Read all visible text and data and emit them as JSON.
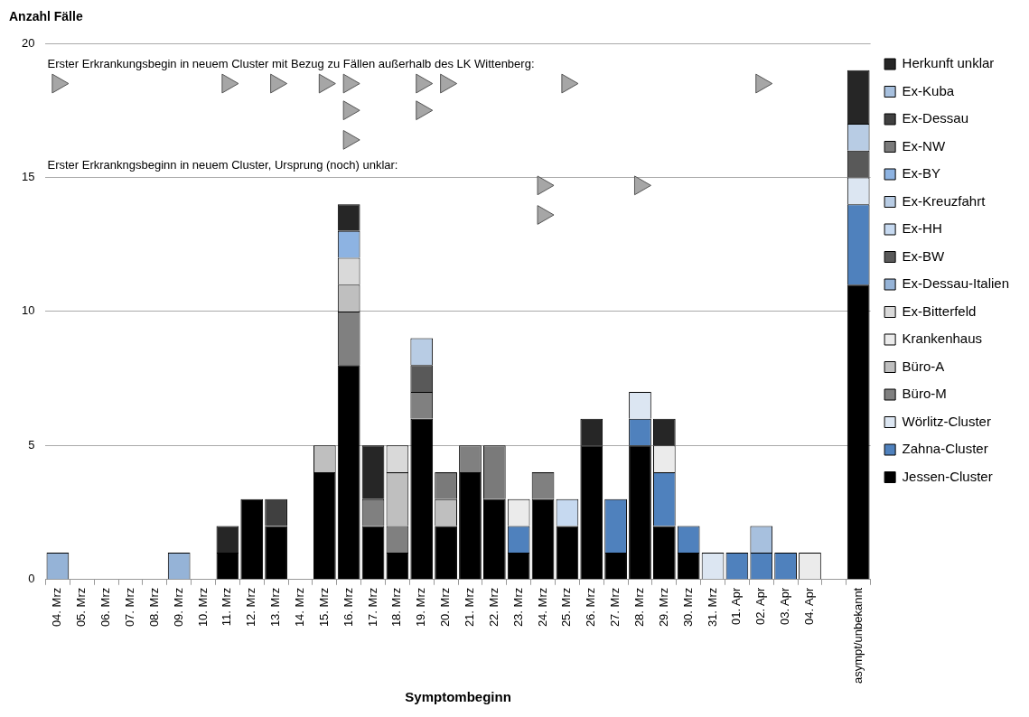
{
  "chart_data": {
    "type": "bar",
    "stacked": true,
    "ylabel": "Anzahl Fälle",
    "xlabel": "Symptombeginn",
    "categories": [
      "04. Mrz",
      "05. Mrz",
      "06. Mrz",
      "07. Mrz",
      "08. Mrz",
      "09. Mrz",
      "10. Mrz",
      "11. Mrz",
      "12. Mrz",
      "13. Mrz",
      "14. Mrz",
      "15. Mrz",
      "16. Mrz",
      "17. Mrz",
      "18. Mrz",
      "19. Mrz",
      "20. Mrz",
      "21. Mrz",
      "22. Mrz",
      "23. Mrz",
      "24. Mrz",
      "25. Mrz",
      "26. Mrz",
      "27. Mrz",
      "28. Mrz",
      "29. Mrz",
      "30. Mrz",
      "31. Mrz",
      "01. Apr",
      "02. Apr",
      "03. Apr",
      "04. Apr",
      null,
      "asympt/unbekannt"
    ],
    "ylim": [
      0,
      20
    ],
    "yticks": [
      0,
      5,
      10,
      15,
      20
    ],
    "grid": "y",
    "legend": "right",
    "annotations": [
      "Erster Erkrankungsbegin in neuem Cluster mit Bezug zu Fällen außerhalb des LK Wittenberg:",
      "Erster Erkrankngsbeginn in neuem Cluster, Ursprung (noch) unklar:"
    ],
    "series": [
      {
        "name": "Jessen-Cluster",
        "color": "#000000",
        "values": [
          null,
          null,
          null,
          null,
          null,
          null,
          null,
          1,
          3,
          2,
          null,
          4,
          8,
          2,
          1,
          6,
          2,
          4,
          3,
          1,
          3,
          2,
          5,
          1,
          5,
          2,
          1,
          null,
          null,
          null,
          null,
          null,
          null,
          11
        ]
      },
      {
        "name": "Zahna-Cluster",
        "color": "#4f81bd",
        "values": [
          null,
          null,
          null,
          null,
          null,
          null,
          null,
          null,
          null,
          null,
          null,
          null,
          null,
          null,
          null,
          null,
          null,
          null,
          null,
          1,
          null,
          null,
          null,
          2,
          1,
          2,
          1,
          null,
          1,
          1,
          1,
          null,
          null,
          3
        ]
      },
      {
        "name": "Wörlitz-Cluster",
        "color": "#dce6f2",
        "values": [
          null,
          null,
          null,
          null,
          null,
          null,
          null,
          null,
          null,
          null,
          null,
          null,
          null,
          null,
          null,
          null,
          null,
          null,
          null,
          null,
          null,
          null,
          null,
          null,
          1,
          null,
          null,
          1,
          null,
          null,
          null,
          null,
          null,
          1
        ]
      },
      {
        "name": "Büro-M",
        "color": "#808080",
        "values": [
          null,
          null,
          null,
          null,
          null,
          null,
          null,
          null,
          null,
          null,
          null,
          null,
          2,
          1,
          1,
          1,
          null,
          1,
          null,
          null,
          1,
          null,
          null,
          null,
          null,
          null,
          null,
          null,
          null,
          null,
          null,
          null,
          null,
          null
        ]
      },
      {
        "name": "Büro-A",
        "color": "#bfbfbf",
        "values": [
          null,
          null,
          null,
          null,
          null,
          null,
          null,
          null,
          null,
          null,
          null,
          1,
          1,
          null,
          2,
          null,
          1,
          null,
          null,
          null,
          null,
          null,
          null,
          null,
          null,
          null,
          null,
          null,
          null,
          null,
          null,
          null,
          null,
          null
        ]
      },
      {
        "name": "Krankenhaus",
        "color": "#ebebeb",
        "values": [
          null,
          null,
          null,
          null,
          null,
          null,
          null,
          null,
          null,
          null,
          null,
          null,
          null,
          null,
          null,
          null,
          null,
          null,
          null,
          1,
          null,
          null,
          null,
          null,
          null,
          1,
          null,
          null,
          null,
          null,
          null,
          1,
          null,
          null
        ]
      },
      {
        "name": "Ex-Bitterfeld",
        "color": "#d9d9d9",
        "values": [
          null,
          null,
          null,
          null,
          null,
          null,
          null,
          null,
          null,
          null,
          null,
          null,
          1,
          null,
          1,
          null,
          null,
          null,
          null,
          null,
          null,
          null,
          null,
          null,
          null,
          null,
          null,
          null,
          null,
          null,
          null,
          null,
          null,
          null
        ]
      },
      {
        "name": "Ex-Dessau-Italien",
        "color": "#95b3d7",
        "values": [
          1,
          null,
          null,
          null,
          null,
          1,
          null,
          null,
          null,
          null,
          null,
          null,
          null,
          null,
          null,
          null,
          null,
          null,
          null,
          null,
          null,
          null,
          null,
          null,
          null,
          null,
          null,
          null,
          null,
          null,
          null,
          null,
          null,
          null
        ]
      },
      {
        "name": "Ex-BW",
        "color": "#595959",
        "values": [
          null,
          null,
          null,
          null,
          null,
          null,
          null,
          null,
          null,
          null,
          null,
          null,
          null,
          null,
          null,
          1,
          null,
          null,
          null,
          null,
          null,
          null,
          null,
          null,
          null,
          null,
          null,
          null,
          null,
          null,
          null,
          null,
          null,
          1
        ]
      },
      {
        "name": "Ex-HH",
        "color": "#c6d9f0",
        "values": [
          null,
          null,
          null,
          null,
          null,
          null,
          null,
          null,
          null,
          null,
          null,
          null,
          null,
          null,
          null,
          null,
          null,
          null,
          null,
          null,
          null,
          1,
          null,
          null,
          null,
          null,
          null,
          null,
          null,
          null,
          null,
          null,
          null,
          null
        ]
      },
      {
        "name": "Ex-Kreuzfahrt",
        "color": "#b8cce4",
        "values": [
          null,
          null,
          null,
          null,
          null,
          null,
          null,
          null,
          null,
          null,
          null,
          null,
          null,
          null,
          null,
          1,
          null,
          null,
          null,
          null,
          null,
          null,
          null,
          null,
          null,
          null,
          null,
          null,
          null,
          null,
          null,
          null,
          null,
          1
        ]
      },
      {
        "name": "Ex-BY",
        "color": "#8db3e2",
        "values": [
          null,
          null,
          null,
          null,
          null,
          null,
          null,
          null,
          null,
          null,
          null,
          null,
          1,
          null,
          null,
          null,
          null,
          null,
          null,
          null,
          null,
          null,
          null,
          null,
          null,
          null,
          null,
          null,
          null,
          null,
          null,
          null,
          null,
          null
        ]
      },
      {
        "name": "Ex-NW",
        "color": "#7a7a7a",
        "values": [
          null,
          null,
          null,
          null,
          null,
          null,
          null,
          null,
          null,
          null,
          null,
          null,
          null,
          null,
          null,
          null,
          1,
          null,
          2,
          null,
          null,
          null,
          null,
          null,
          null,
          null,
          null,
          null,
          null,
          null,
          null,
          null,
          null,
          null
        ]
      },
      {
        "name": "Ex-Dessau",
        "color": "#404040",
        "values": [
          null,
          null,
          null,
          null,
          null,
          null,
          null,
          null,
          null,
          1,
          null,
          null,
          null,
          null,
          null,
          null,
          null,
          null,
          null,
          null,
          null,
          null,
          null,
          null,
          null,
          null,
          null,
          null,
          null,
          null,
          null,
          null,
          null,
          null
        ]
      },
      {
        "name": "Ex-Kuba",
        "color": "#a7c0de",
        "values": [
          null,
          null,
          null,
          null,
          null,
          null,
          null,
          null,
          null,
          null,
          null,
          null,
          null,
          null,
          null,
          null,
          null,
          null,
          null,
          null,
          null,
          null,
          null,
          null,
          null,
          null,
          null,
          null,
          null,
          1,
          null,
          null,
          null,
          null
        ]
      },
      {
        "name": "Herkunft unklar",
        "color": "#262626",
        "values": [
          null,
          null,
          null,
          null,
          null,
          null,
          null,
          1,
          null,
          null,
          null,
          null,
          1,
          2,
          null,
          null,
          null,
          null,
          null,
          null,
          null,
          null,
          1,
          null,
          null,
          1,
          null,
          null,
          null,
          null,
          null,
          null,
          null,
          2
        ]
      },
      {
        "type": "scatter",
        "marker": "triangle",
        "color": "#a6a6a6",
        "x": [
          "04. Mrz",
          "11. Mrz",
          "13. Mrz",
          "15. Mrz",
          "16. Mrz",
          "19. Mrz",
          "20. Mrz",
          "25. Mrz",
          "02. Apr",
          "16. Mrz",
          "19. Mrz",
          "16. Mrz"
        ],
        "values": [
          18.5,
          18.5,
          18.5,
          18.5,
          18.5,
          18.5,
          18.5,
          18.5,
          18.5,
          17.5,
          17.5,
          16.4
        ]
      },
      {
        "type": "scatter",
        "marker": "triangle",
        "color": "#a6a6a6",
        "x": [
          "24. Mrz",
          "28. Mrz",
          "24. Mrz"
        ],
        "values": [
          14.7,
          14.7,
          13.6
        ]
      }
    ]
  }
}
